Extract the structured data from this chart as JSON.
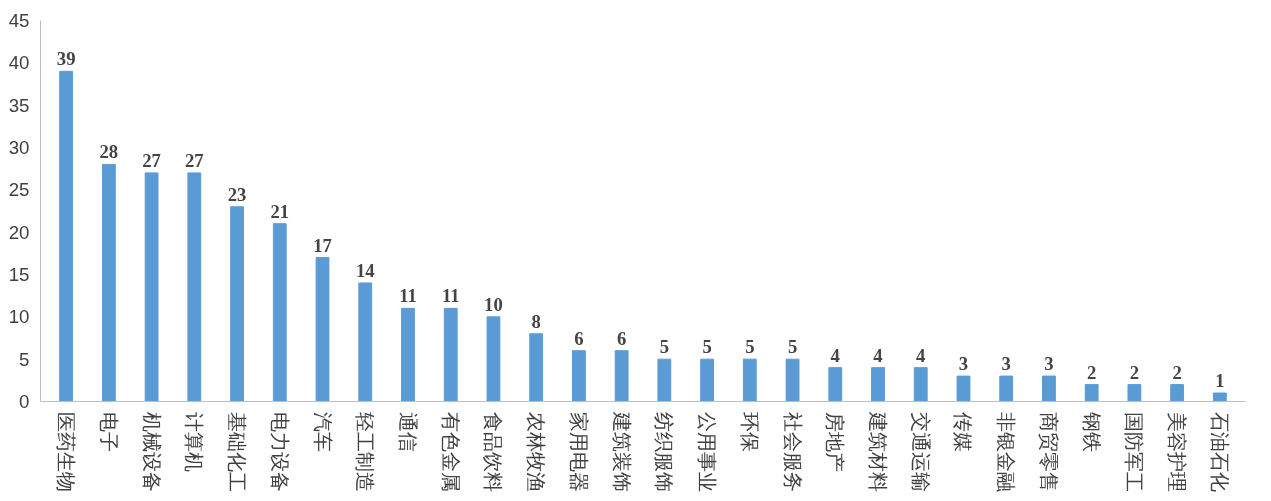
{
  "chart_data": {
    "type": "bar",
    "categories": [
      "医药生物",
      "电子",
      "机械设备",
      "计算机",
      "基础化工",
      "电力设备",
      "汽车",
      "轻工制造",
      "通信",
      "有色金属",
      "食品饮料",
      "农林牧渔",
      "家用电器",
      "建筑装饰",
      "纺织服饰",
      "公用事业",
      "环保",
      "社会服务",
      "房地产",
      "建筑材料",
      "交通运输",
      "传媒",
      "非银金融",
      "商贸零售",
      "钢铁",
      "国防军工",
      "美容护理",
      "石油石化"
    ],
    "values": [
      39,
      28,
      27,
      27,
      23,
      21,
      17,
      14,
      11,
      11,
      10,
      8,
      6,
      6,
      5,
      5,
      5,
      5,
      4,
      4,
      4,
      3,
      3,
      3,
      2,
      2,
      2,
      1
    ],
    "color": "#5b9bd5",
    "ylim": [
      0,
      45
    ],
    "yticks": [
      0,
      5,
      10,
      15,
      20,
      25,
      30,
      35,
      40,
      45
    ],
    "grid": false,
    "data_labels": true
  }
}
